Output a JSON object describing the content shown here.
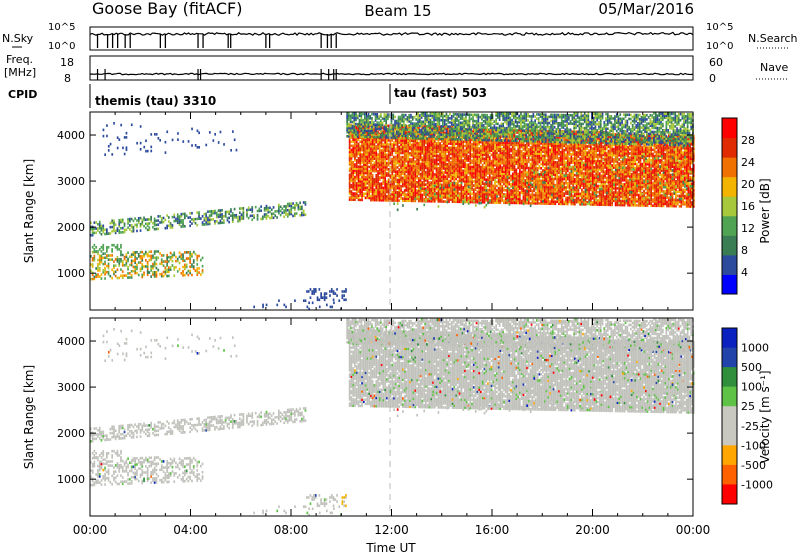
{
  "header": {
    "station": "Goose Bay (fitACF)",
    "beam": "Beam 15",
    "date": "05/Mar/2016"
  },
  "noise_panel": {
    "left_label": "N.Sky",
    "right_label": "N.Search",
    "tick_top": "10^5",
    "tick_bottom": "10^0"
  },
  "freq_panel": {
    "left_label_1": "Freq.",
    "left_label_2": "[MHz]",
    "right_label": "Nave",
    "left_tick_top": "18",
    "left_tick_bottom": "8",
    "right_tick_top": "60",
    "right_tick_bottom": "0"
  },
  "cpid_panel": {
    "label": "CPID",
    "modes": [
      {
        "name": "themis (tau) 3310",
        "start": "00:00"
      },
      {
        "name": "tau (fast) 503",
        "start": "12:00"
      }
    ]
  },
  "colors": {
    "power_scale": [
      "#0000ff",
      "#2d4b9c",
      "#3a7d55",
      "#4fa353",
      "#a6c83a",
      "#f2b400",
      "#f07000",
      "#e02a00",
      "#ff0000"
    ],
    "velocity_scale": [
      "#ff0000",
      "#ff6000",
      "#ffa600",
      "#c8c8c0",
      "#c8c8c0",
      "#5ec246",
      "#2f8f3c",
      "#2244aa",
      "#0b22c0"
    ],
    "ground_scatter": "#c2c2bd"
  },
  "chart_data": [
    {
      "type": "heatmap",
      "name": "power",
      "xlabel": "",
      "ylabel": "Slant Range [km]",
      "xlim": [
        0,
        24
      ],
      "ylim": [
        200,
        4500
      ],
      "yticks": [
        "1000",
        "2000",
        "3000",
        "4000"
      ],
      "colorbar_label": "Power [dB]",
      "colorbar_ticks": [
        "4",
        "8",
        "12",
        "16",
        "20",
        "24",
        "28"
      ],
      "marker_x": 12
    },
    {
      "type": "heatmap",
      "name": "velocity",
      "xlabel": "Time UT",
      "ylabel": "Slant Range [km]",
      "xlim": [
        0,
        24
      ],
      "ylim": [
        200,
        4500
      ],
      "xticks": [
        "00:00",
        "04:00",
        "08:00",
        "12:00",
        "16:00",
        "20:00",
        "00:00"
      ],
      "yticks": [
        "1000",
        "2000",
        "3000",
        "4000"
      ],
      "colorbar_label": "Velocity [m s⁻¹]",
      "colorbar_ticks": [
        "1000",
        "500",
        "100",
        "25",
        "-25",
        "-100",
        "-500",
        "-1000"
      ],
      "marker_x": 12
    }
  ]
}
